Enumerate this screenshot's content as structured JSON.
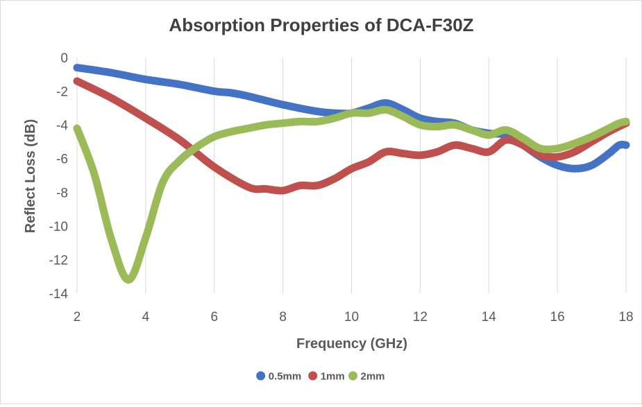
{
  "chart_data": {
    "type": "line",
    "title": "Absorption Properties of DCA-F30Z",
    "xlabel": "Frequency (GHz)",
    "ylabel": "Reflect Loss (dB)",
    "xlim": [
      2,
      18
    ],
    "ylim": [
      -14,
      0
    ],
    "xticks": [
      2,
      4,
      6,
      8,
      10,
      12,
      14,
      16,
      18
    ],
    "yticks": [
      0,
      -2,
      -4,
      -6,
      -8,
      -10,
      -12,
      -14
    ],
    "grid": "vertical",
    "legend_position": "bottom",
    "series": [
      {
        "name": "0.5mm",
        "color": "#4472C4",
        "x": [
          2,
          3,
          4,
          5,
          6,
          6.5,
          7,
          8,
          9,
          9.5,
          10,
          10.5,
          11,
          11.5,
          12,
          12.5,
          13,
          13.5,
          14,
          14.5,
          15,
          15.5,
          16,
          16.5,
          17,
          17.5,
          17.8,
          18
        ],
        "y": [
          -0.6,
          -0.9,
          -1.3,
          -1.6,
          -2.0,
          -2.1,
          -2.3,
          -2.8,
          -3.2,
          -3.3,
          -3.3,
          -3.0,
          -2.7,
          -3.1,
          -3.6,
          -3.8,
          -3.9,
          -4.3,
          -4.5,
          -4.6,
          -5.2,
          -5.9,
          -6.4,
          -6.6,
          -6.4,
          -5.7,
          -5.2,
          -5.2
        ]
      },
      {
        "name": "1mm",
        "color": "#C0504D",
        "x": [
          2,
          3,
          4,
          5,
          6,
          7,
          7.5,
          8,
          8.5,
          9,
          9.5,
          10,
          10.5,
          11,
          11.5,
          12,
          12.5,
          13,
          13.5,
          14,
          14.5,
          15,
          15.5,
          16,
          16.5,
          17,
          17.5,
          18
        ],
        "y": [
          -1.4,
          -2.4,
          -3.6,
          -4.9,
          -6.5,
          -7.7,
          -7.8,
          -7.9,
          -7.6,
          -7.6,
          -7.2,
          -6.6,
          -6.2,
          -5.6,
          -5.7,
          -5.8,
          -5.6,
          -5.2,
          -5.4,
          -5.6,
          -4.9,
          -5.2,
          -5.8,
          -5.9,
          -5.6,
          -5.0,
          -4.4,
          -3.9
        ]
      },
      {
        "name": "2mm",
        "color": "#9BBB59",
        "x": [
          2,
          2.5,
          3,
          3.5,
          4,
          4.5,
          5,
          5.5,
          6,
          6.5,
          7,
          7.5,
          8,
          8.5,
          9,
          9.5,
          10,
          10.5,
          11,
          11.5,
          12,
          12.5,
          13,
          13.5,
          14,
          14.5,
          15,
          15.5,
          16,
          16.5,
          17,
          17.5,
          17.8,
          18
        ],
        "y": [
          -4.2,
          -6.9,
          -10.8,
          -13.2,
          -10.7,
          -7.4,
          -6.1,
          -5.3,
          -4.7,
          -4.4,
          -4.2,
          -4.0,
          -3.9,
          -3.8,
          -3.8,
          -3.6,
          -3.3,
          -3.3,
          -3.1,
          -3.5,
          -4.0,
          -4.1,
          -4.0,
          -4.3,
          -4.6,
          -4.3,
          -4.8,
          -5.4,
          -5.4,
          -5.1,
          -4.7,
          -4.2,
          -3.9,
          -3.8
        ]
      }
    ]
  }
}
